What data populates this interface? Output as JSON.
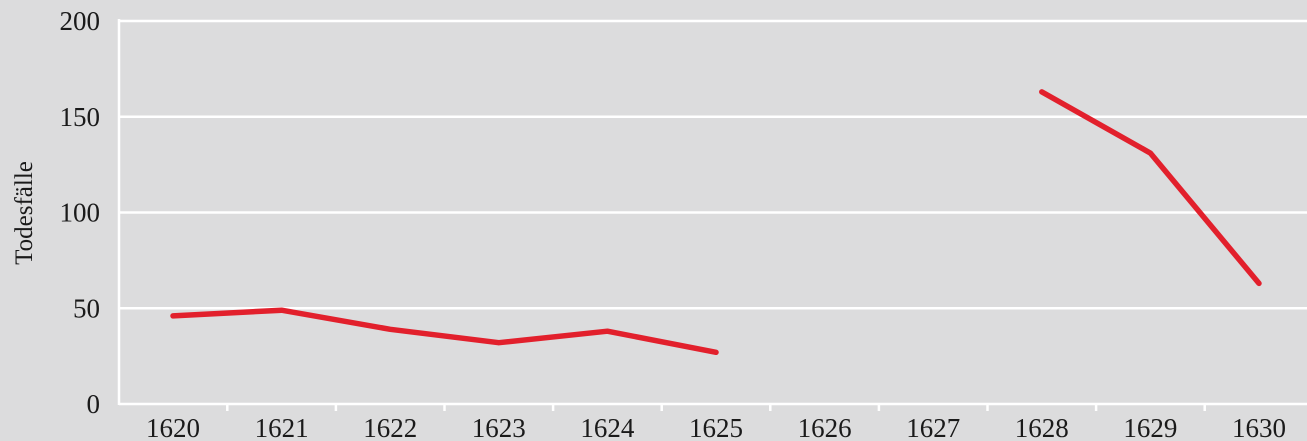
{
  "chart_data": {
    "type": "line",
    "title": "",
    "xlabel": "",
    "ylabel": "Todesfälle",
    "categories": [
      "1620",
      "1621",
      "1622",
      "1623",
      "1624",
      "1625",
      "1626",
      "1627",
      "1628",
      "1629",
      "1630"
    ],
    "yticks": [
      "0",
      "50",
      "100",
      "150",
      "200"
    ],
    "ylim": [
      0,
      200
    ],
    "grid": true,
    "series": [
      {
        "color": "#e2202c",
        "values": [
          46,
          49,
          39,
          32,
          38,
          27,
          null,
          null,
          163,
          131,
          63
        ]
      }
    ]
  },
  "colors": {
    "background": "#dcdcdd",
    "grid": "#ffffff",
    "axis": "#ffffff",
    "line": "#e2202c"
  }
}
